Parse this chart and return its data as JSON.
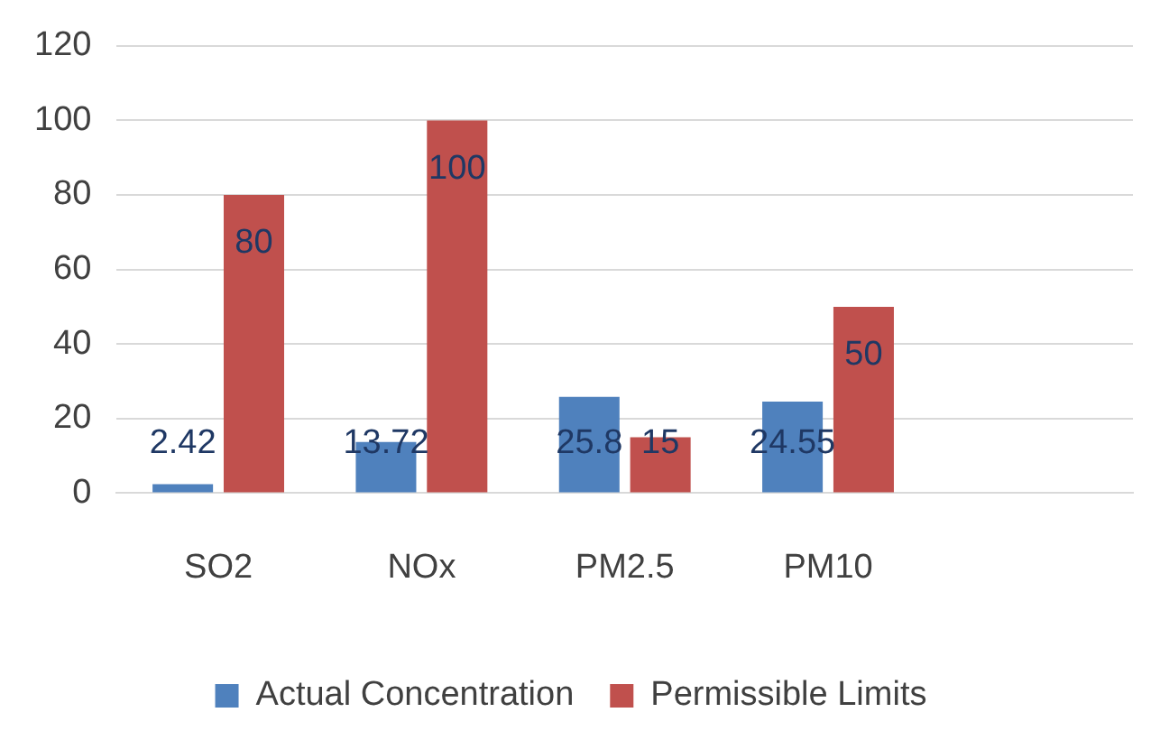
{
  "chart_data": {
    "type": "bar",
    "categories": [
      "SO2",
      "NOx",
      "PM2.5",
      "PM10",
      null
    ],
    "series": [
      {
        "name": "Actual Concentration",
        "color": "#4f81bd",
        "values": [
          2.42,
          13.72,
          25.8,
          24.55,
          null
        ]
      },
      {
        "name": "Permissible Limits",
        "color": "#c0504d",
        "values": [
          80,
          100,
          15,
          50,
          null
        ]
      }
    ],
    "ylim": [
      0,
      120
    ],
    "yticks": [
      0,
      20,
      40,
      60,
      80,
      100,
      120
    ],
    "grid": "y",
    "legend": "bottom",
    "data_labels": true
  }
}
